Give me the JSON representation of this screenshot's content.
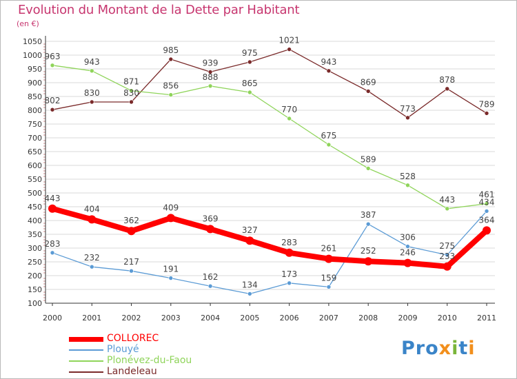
{
  "title": "Evolution du Montant de la Dette par Habitant",
  "unit": "(en €)",
  "logo": {
    "p1": "Pro",
    "x": "x",
    "i": "i",
    "t": "t",
    "i2": "i"
  },
  "colors": {
    "title": "#c7366f",
    "grid": "#d9d9d9",
    "axis": "#333333"
  },
  "chart_data": {
    "type": "line",
    "title": "Evolution du Montant de la Dette par Habitant",
    "ylabel": "(en €)",
    "xlabel": "",
    "x": [
      "2000",
      "2001",
      "2002",
      "2003",
      "2004",
      "2005",
      "2006",
      "2007",
      "2008",
      "2009",
      "2010",
      "2011"
    ],
    "ylim": [
      100,
      1050
    ],
    "yticks": [
      "100",
      "150",
      "200",
      "250",
      "300",
      "350",
      "400",
      "450",
      "500",
      "550",
      "600",
      "650",
      "700",
      "750",
      "800",
      "850",
      "900",
      "950",
      "1000",
      "1050"
    ],
    "series": [
      {
        "name": "COLLOREC",
        "color": "#ff0000",
        "values": [
          443,
          404,
          362,
          409,
          369,
          327,
          283,
          261,
          252,
          246,
          233,
          364
        ]
      },
      {
        "name": "Plouyé",
        "color": "#5b9bd5",
        "values": [
          283,
          232,
          217,
          191,
          162,
          134,
          173,
          159,
          387,
          306,
          275,
          434
        ]
      },
      {
        "name": "Plonévez-du-Faou",
        "color": "#8fd45a",
        "values": [
          963,
          943,
          871,
          856,
          888,
          865,
          770,
          675,
          589,
          528,
          443,
          461
        ]
      },
      {
        "name": "Landeleau",
        "color": "#7a2a2a",
        "values": [
          802,
          830,
          830,
          985,
          939,
          975,
          1021,
          943,
          869,
          773,
          878,
          789
        ]
      }
    ]
  }
}
